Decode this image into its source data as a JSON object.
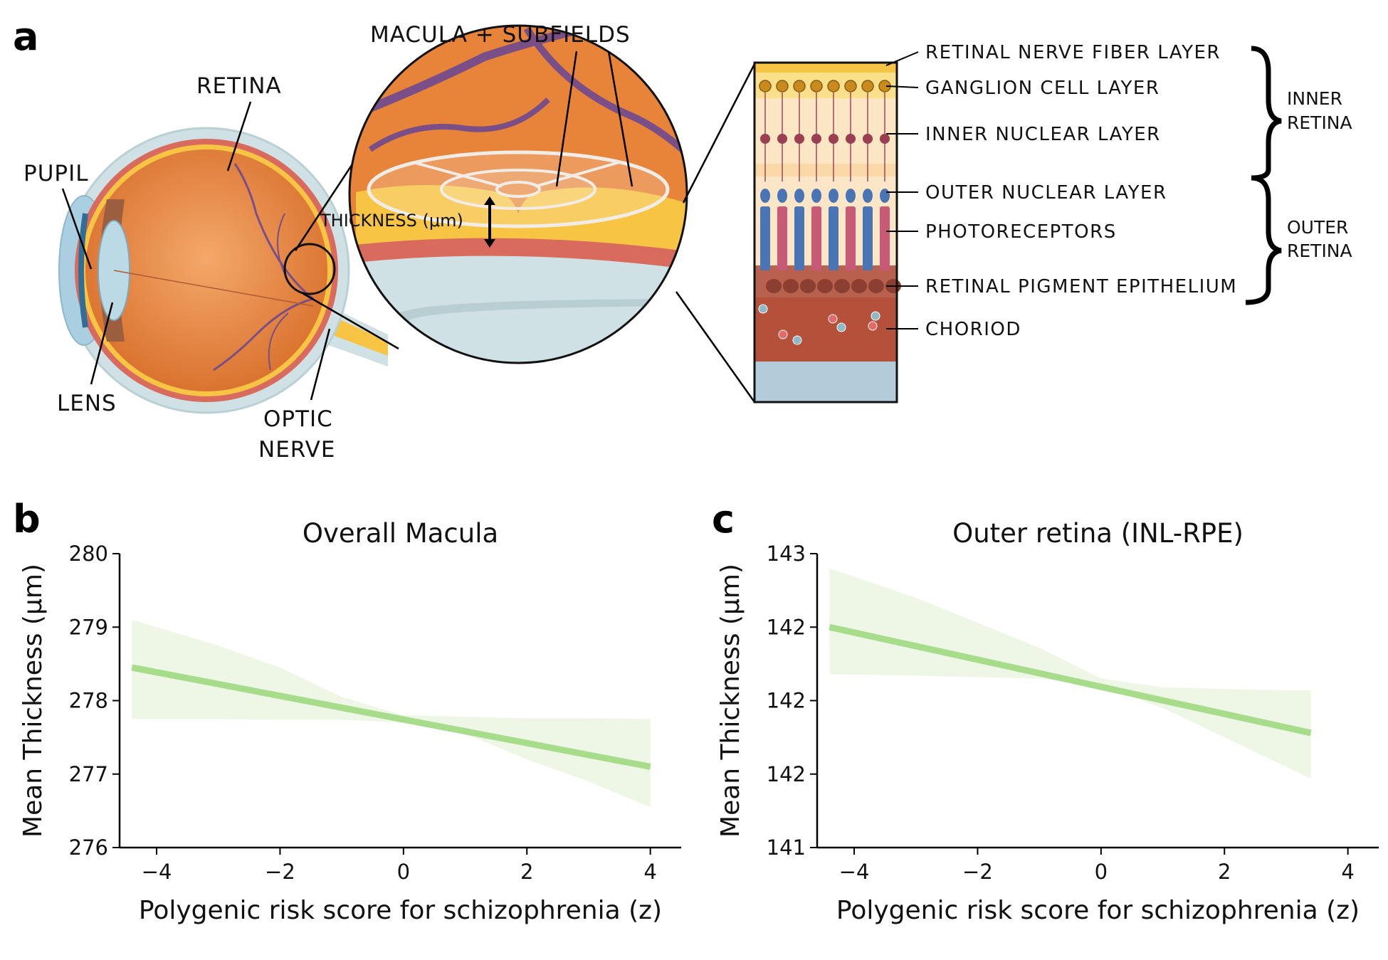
{
  "panel_letters": {
    "a": "a",
    "b": "b",
    "c": "c"
  },
  "anatomy": {
    "labels": {
      "pupil": "PUPIL",
      "retina": "RETINA",
      "lens": "LENS",
      "optic_nerve_1": "OPTIC",
      "optic_nerve_2": "NERVE",
      "macula": "MACULA + SUBFIELDS",
      "thickness": "THICKNESS (μm)"
    },
    "layers": [
      "RETINAL NERVE FIBER LAYER",
      "GANGLION CELL LAYER",
      "INNER NUCLEAR LAYER",
      "OUTER NUCLEAR LAYER",
      "PHOTORECEPTORS",
      "RETINAL PIGMENT EPITHELIUM",
      "CHORIOD"
    ],
    "groups": {
      "inner_1": "INNER",
      "inner_2": "RETINA",
      "outer_1": "OUTER",
      "outer_2": "RETINA"
    },
    "colors": {
      "eye_orange": "#e8843a",
      "retina_red": "#d96a5e",
      "retina_yellow": "#f7c443",
      "sclera": "#cfe1e4",
      "vessel": "#7a4e86",
      "rpe": "#8c3e30",
      "choroid": "#b5513a",
      "photoreceptor_blue": "#4b74b5",
      "photoreceptor_pink": "#c85a78"
    }
  },
  "chart_data": [
    {
      "type": "line",
      "title": "Overall Macula",
      "xlabel": "Polygenic risk score for schizophrenia (z)",
      "ylabel": "Mean Thickness (μm)",
      "xlim": [
        -4.6,
        4.5
      ],
      "ylim": [
        276,
        280
      ],
      "xticks": [
        -4,
        -2,
        0,
        2,
        4
      ],
      "xtick_labels": [
        "−4",
        "−2",
        "0",
        "2",
        "4"
      ],
      "yticks": [
        276,
        277,
        278,
        279,
        280
      ],
      "ytick_labels": [
        "276",
        "277",
        "278",
        "279",
        "280"
      ],
      "line_color": "#a6dc8a",
      "band_color": "#eef7e6",
      "grid": false,
      "series": [
        {
          "x": [
            -4.4,
            4.0
          ],
          "y": [
            278.45,
            277.1
          ],
          "ci_x": [
            -4.4,
            -3.0,
            -2.0,
            -1.0,
            0.0,
            1.0,
            2.0,
            3.0,
            4.0
          ],
          "ci_lower": [
            277.75,
            277.75,
            277.74,
            277.74,
            277.7,
            277.55,
            277.2,
            276.9,
            276.55
          ],
          "ci_upper": [
            279.1,
            278.75,
            278.45,
            278.05,
            277.8,
            277.78,
            277.76,
            277.76,
            277.75
          ]
        }
      ]
    },
    {
      "type": "line",
      "title": "Outer retina (INL-RPE)",
      "xlabel": "Polygenic risk score for schizophrenia (z)",
      "ylabel": "Mean Thickness (μm)",
      "xlim": [
        -4.6,
        4.5
      ],
      "ylim": [
        141,
        143
      ],
      "xticks": [
        -4,
        -2,
        0,
        2,
        4
      ],
      "xtick_labels": [
        "−4",
        "−2",
        "0",
        "2",
        "4"
      ],
      "yticks": [
        141,
        141.5,
        142,
        142.5,
        143
      ],
      "ytick_labels": [
        "141",
        "142",
        "142",
        "142",
        "143"
      ],
      "line_color": "#a6dc8a",
      "band_color": "#eef7e6",
      "grid": false,
      "series": [
        {
          "x": [
            -4.4,
            3.4
          ],
          "y": [
            142.5,
            141.78
          ],
          "ci_x": [
            -4.4,
            -3.0,
            -2.0,
            -1.0,
            0.0,
            1.0,
            2.0,
            3.0,
            3.4
          ],
          "ci_lower": [
            142.18,
            142.17,
            142.16,
            142.15,
            142.1,
            141.95,
            141.75,
            141.55,
            141.47
          ],
          "ci_upper": [
            142.9,
            142.7,
            142.53,
            142.36,
            142.15,
            142.09,
            142.08,
            142.07,
            142.07
          ]
        }
      ]
    }
  ]
}
